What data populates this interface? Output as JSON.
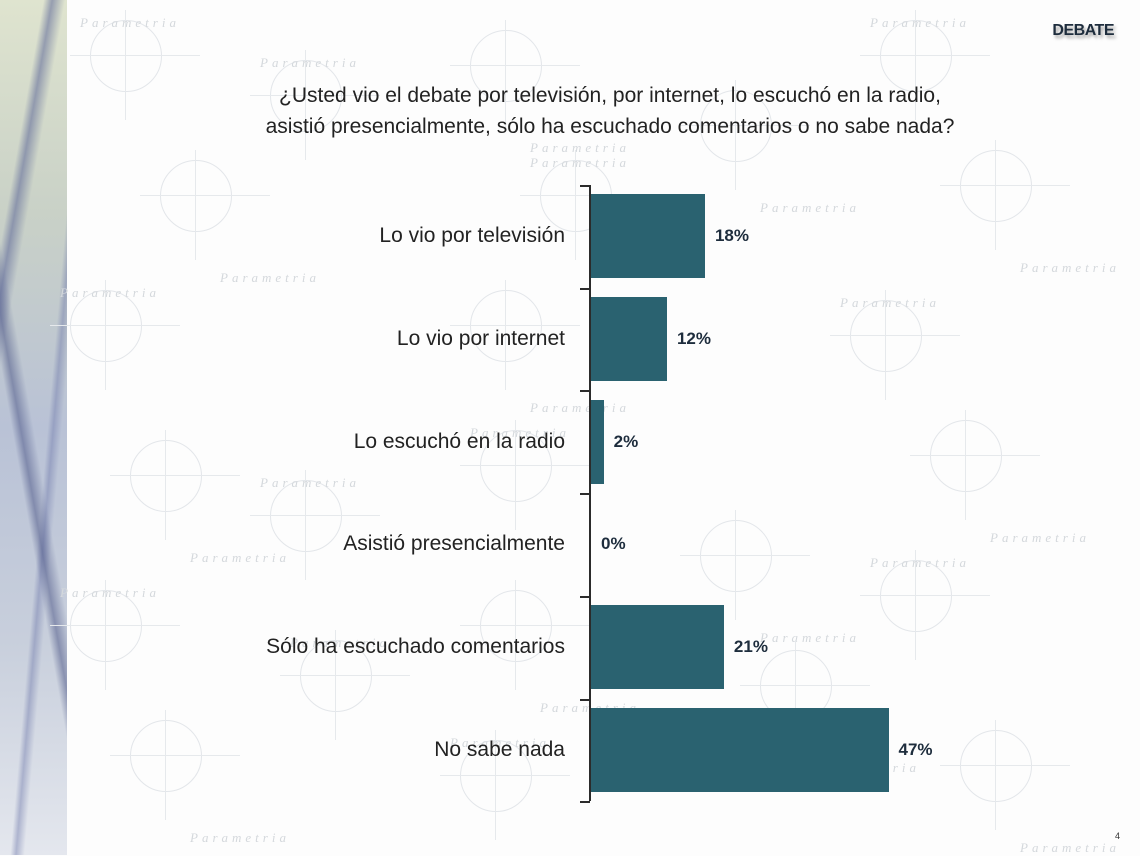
{
  "header": {
    "tag": "DEBATE"
  },
  "question": {
    "line1": "¿Usted vio el debate por televisión, por internet, lo escuchó en la radio,",
    "line2": "asistió presencialmente, sólo ha escuchado comentarios o no sabe nada?"
  },
  "watermark": {
    "text": "Parametria"
  },
  "page_number": "4",
  "colors": {
    "bar": "#2a6270",
    "value_text": "#1e2d3d"
  },
  "chart_data": {
    "type": "bar",
    "orientation": "horizontal",
    "title": "¿Usted vio el debate por televisión, por internet, lo escuchó en la radio, asistió presencialmente, sólo ha escuchado comentarios o no sabe nada?",
    "categories": [
      "Lo vio por televisión",
      "Lo vio por internet",
      "Lo escuchó en la radio",
      "Asistió presencialmente",
      "Sólo ha escuchado comentarios",
      "No sabe nada"
    ],
    "values": [
      18,
      12,
      2,
      0,
      21,
      47
    ],
    "value_labels": [
      "18%",
      "12%",
      "2%",
      "0%",
      "21%",
      "47%"
    ],
    "xlabel": "",
    "ylabel": "",
    "xlim": [
      0,
      50
    ],
    "grid": false,
    "legend": null,
    "unit": "%"
  }
}
